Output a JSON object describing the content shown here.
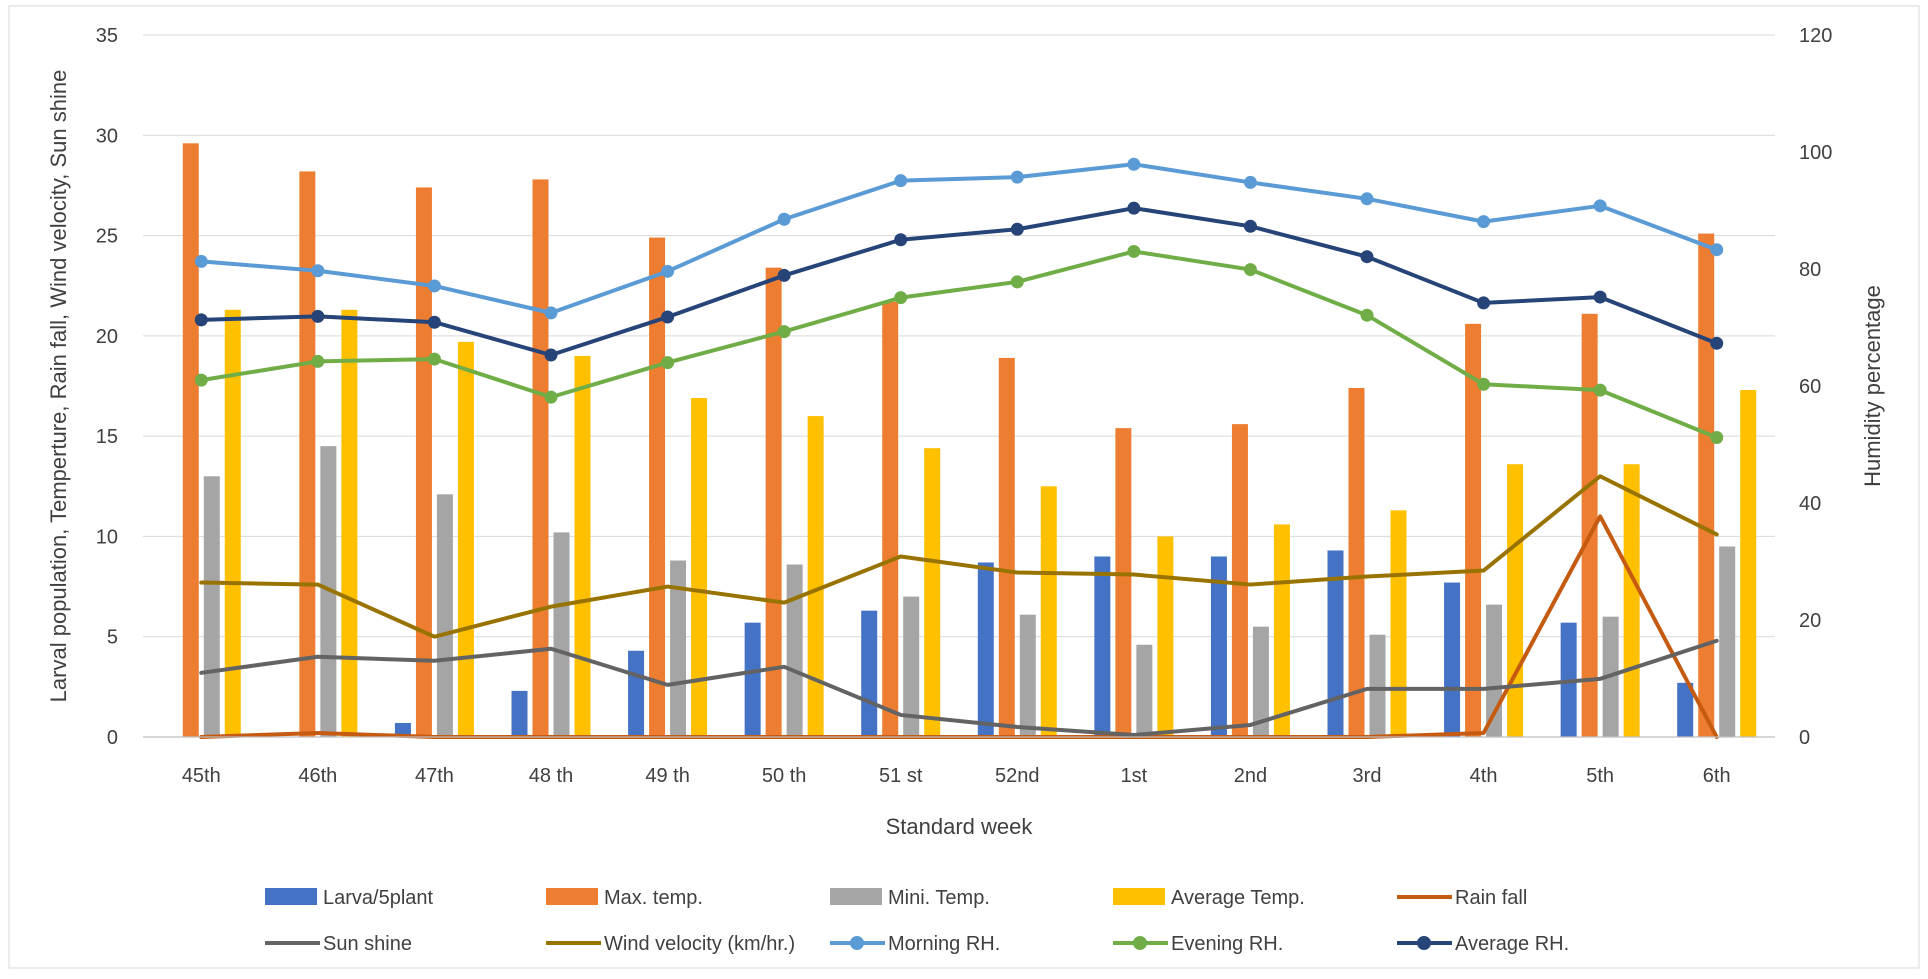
{
  "chart_data": {
    "type": "bar",
    "xlabel": "Standard week",
    "ylabel_left": "Larval population, Temperture, Rain fall, Wind velocity, Sun shine",
    "ylabel_right": "Humidity percentage",
    "ylim_left": [
      0,
      35
    ],
    "ylim_right": [
      0,
      120
    ],
    "yticks_left": [
      "0",
      "5",
      "10",
      "15",
      "20",
      "25",
      "30",
      "35"
    ],
    "yticks_right": [
      "0",
      "20",
      "40",
      "60",
      "80",
      "100",
      "120"
    ],
    "grid": true,
    "legend_position": "bottom",
    "categories": [
      "45th",
      "46th",
      "47th",
      "48 th",
      "49 th",
      "50 th",
      "51 st",
      "52nd",
      "1st",
      "2nd",
      "3rd",
      "4th",
      "5th",
      "6th"
    ],
    "bar_series": [
      {
        "name": "Larva/5plant",
        "color": "#4472C4",
        "values": [
          0,
          0,
          0.7,
          2.3,
          4.3,
          5.7,
          6.3,
          8.7,
          9.0,
          9.0,
          9.3,
          7.7,
          5.7,
          2.7
        ]
      },
      {
        "name": "Max. temp.",
        "color": "#ED7D31",
        "values": [
          29.6,
          28.2,
          27.4,
          27.8,
          24.9,
          23.4,
          21.7,
          18.9,
          15.4,
          15.6,
          17.4,
          20.6,
          21.1,
          25.1
        ]
      },
      {
        "name": "Mini. Temp.",
        "color": "#A5A5A5",
        "values": [
          13.0,
          14.5,
          12.1,
          10.2,
          8.8,
          8.6,
          7.0,
          6.1,
          4.6,
          5.5,
          5.1,
          6.6,
          6.0,
          9.5
        ]
      },
      {
        "name": "Average Temp.",
        "color": "#FFC000",
        "values": [
          21.3,
          21.3,
          19.7,
          19.0,
          16.9,
          16.0,
          14.4,
          12.5,
          10.0,
          10.6,
          11.3,
          13.6,
          13.6,
          17.3
        ]
      }
    ],
    "line_series": [
      {
        "name": "Rain fall",
        "color": "#C55A11",
        "axis": "left",
        "markers": false,
        "values": [
          0,
          0.2,
          0,
          0,
          0,
          0,
          0,
          0,
          0,
          0,
          0,
          0.2,
          11.0,
          0
        ]
      },
      {
        "name": "Sun shine",
        "color": "#636363",
        "axis": "left",
        "markers": false,
        "values": [
          3.2,
          4.0,
          3.8,
          4.4,
          2.6,
          3.5,
          1.1,
          0.5,
          0.1,
          0.6,
          2.4,
          2.4,
          2.9,
          4.8
        ]
      },
      {
        "name": "Wind velocity (km/hr.)",
        "color": "#997300",
        "axis": "left",
        "markers": false,
        "values": [
          7.7,
          7.6,
          5.0,
          6.5,
          7.5,
          6.7,
          9.0,
          8.2,
          8.1,
          7.6,
          8.0,
          8.3,
          13.0,
          10.1
        ]
      },
      {
        "name": "Morning RH.",
        "color": "#5B9BD5",
        "axis": "right",
        "markers": true,
        "values": [
          81.3,
          79.7,
          77.1,
          72.5,
          79.6,
          88.5,
          95.1,
          95.7,
          97.9,
          94.8,
          92.0,
          88.1,
          90.8,
          83.3
        ]
      },
      {
        "name": "Evening RH.",
        "color": "#70AD47",
        "axis": "right",
        "markers": true,
        "values": [
          61.0,
          64.2,
          64.6,
          58.1,
          64.0,
          69.3,
          75.1,
          77.8,
          83.0,
          79.9,
          72.1,
          60.3,
          59.3,
          51.2
        ]
      },
      {
        "name": "Average  RH.",
        "color": "#264478",
        "axis": "right",
        "markers": true,
        "values": [
          71.3,
          71.9,
          70.9,
          65.3,
          71.8,
          78.9,
          85.0,
          86.8,
          90.4,
          87.3,
          82.1,
          74.2,
          75.2,
          67.3
        ]
      }
    ],
    "legend": [
      [
        "Larva/5plant",
        "Max. temp.",
        "Mini. Temp.",
        "Average Temp.",
        "Rain fall"
      ],
      [
        "Sun shine",
        "Wind velocity (km/hr.)",
        "Morning RH.",
        "Evening RH.",
        "Average  RH."
      ]
    ]
  }
}
